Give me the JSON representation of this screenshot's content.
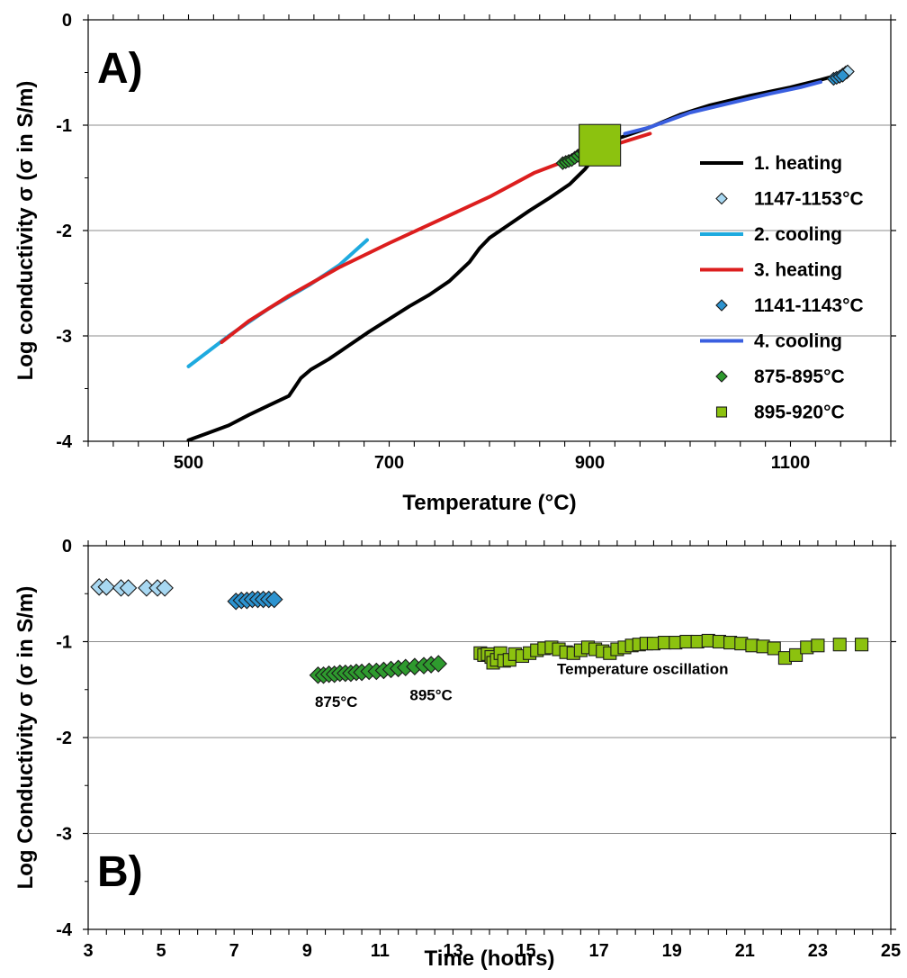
{
  "chart_data": [
    {
      "type": "line",
      "panel_label": "A)",
      "xlabel": "Temperature (°C)",
      "ylabel": "Log conductivity σ (σ in S/m)",
      "xlim": [
        400,
        1200
      ],
      "ylim": [
        -4,
        0
      ],
      "x_ticks": [
        500,
        700,
        900,
        1100
      ],
      "y_ticks": [
        0,
        -1,
        -2,
        -3,
        -4
      ],
      "grid": "horizontal",
      "legend_position": "right",
      "series": [
        {
          "name": "1. heating",
          "kind": "line",
          "color": "#000000",
          "points": [
            [
              500,
              -3.99
            ],
            [
              520,
              -3.92
            ],
            [
              540,
              -3.85
            ],
            [
              560,
              -3.75
            ],
            [
              580,
              -3.66
            ],
            [
              600,
              -3.57
            ],
            [
              605,
              -3.5
            ],
            [
              612,
              -3.4
            ],
            [
              622,
              -3.32
            ],
            [
              640,
              -3.22
            ],
            [
              660,
              -3.09
            ],
            [
              680,
              -2.96
            ],
            [
              700,
              -2.84
            ],
            [
              720,
              -2.72
            ],
            [
              740,
              -2.61
            ],
            [
              760,
              -2.48
            ],
            [
              780,
              -2.3
            ],
            [
              790,
              -2.17
            ],
            [
              800,
              -2.07
            ],
            [
              820,
              -1.94
            ],
            [
              840,
              -1.81
            ],
            [
              860,
              -1.69
            ],
            [
              880,
              -1.56
            ],
            [
              895,
              -1.42
            ],
            [
              905,
              -1.3
            ],
            [
              915,
              -1.18
            ],
            [
              930,
              -1.12
            ],
            [
              960,
              -1.02
            ],
            [
              990,
              -0.9
            ],
            [
              1020,
              -0.81
            ],
            [
              1060,
              -0.72
            ],
            [
              1100,
              -0.64
            ],
            [
              1130,
              -0.57
            ],
            [
              1145,
              -0.53
            ]
          ]
        },
        {
          "name": "1147-1153°C",
          "kind": "marker",
          "marker": "diamond",
          "color": "#a8d8f2",
          "points": [
            [
              1152,
              -0.52
            ],
            [
              1154,
              -0.51
            ],
            [
              1155,
              -0.5
            ],
            [
              1156,
              -0.5
            ],
            [
              1157,
              -0.49
            ]
          ]
        },
        {
          "name": "2. cooling",
          "kind": "line",
          "color": "#1eaadf",
          "points": [
            [
              500,
              -3.29
            ],
            [
              540,
              -3.0
            ],
            [
              580,
              -2.74
            ],
            [
              620,
              -2.52
            ],
            [
              650,
              -2.33
            ],
            [
              678,
              -2.09
            ]
          ]
        },
        {
          "name": "3. heating",
          "kind": "line",
          "color": "#dc1e1e",
          "points": [
            [
              533,
              -3.06
            ],
            [
              560,
              -2.86
            ],
            [
              600,
              -2.62
            ],
            [
              650,
              -2.35
            ],
            [
              700,
              -2.12
            ],
            [
              750,
              -1.9
            ],
            [
              800,
              -1.68
            ],
            [
              845,
              -1.45
            ],
            [
              870,
              -1.36
            ],
            [
              900,
              -1.27
            ],
            [
              930,
              -1.17
            ],
            [
              960,
              -1.08
            ]
          ]
        },
        {
          "name": "1141-1143°C",
          "kind": "marker",
          "marker": "diamond",
          "color": "#2d93cf",
          "points": [
            [
              1143,
              -0.56
            ],
            [
              1146,
              -0.55
            ],
            [
              1149,
              -0.54
            ],
            [
              1152,
              -0.53
            ]
          ]
        },
        {
          "name": "4. cooling",
          "kind": "line",
          "color": "#3a5fe0",
          "points": [
            [
              935,
              -1.08
            ],
            [
              960,
              -1.02
            ],
            [
              1000,
              -0.88
            ],
            [
              1040,
              -0.79
            ],
            [
              1080,
              -0.7
            ],
            [
              1110,
              -0.64
            ],
            [
              1130,
              -0.59
            ]
          ]
        },
        {
          "name": "875-895°C",
          "kind": "marker",
          "marker": "diamond",
          "color": "#2e9a2e",
          "points": [
            [
              873,
              -1.36
            ],
            [
              876,
              -1.35
            ],
            [
              879,
              -1.34
            ],
            [
              882,
              -1.33
            ],
            [
              885,
              -1.31
            ],
            [
              888,
              -1.29
            ],
            [
              891,
              -1.27
            ],
            [
              894,
              -1.25
            ]
          ]
        },
        {
          "name": "895-920°C",
          "kind": "marker",
          "marker": "square",
          "color": "#8cc20f",
          "points": [
            [
              910,
              -1.19
            ]
          ]
        }
      ]
    },
    {
      "type": "scatter",
      "panel_label": "B)",
      "xlabel": "Time (hours)",
      "ylabel": "Log Conductivity σ (σ in S/m)",
      "xlim": [
        3,
        25
      ],
      "ylim": [
        -4,
        0
      ],
      "x_ticks": [
        3,
        5,
        7,
        9,
        11,
        13,
        15,
        17,
        19,
        21,
        23,
        25
      ],
      "y_ticks": [
        0,
        -1,
        -2,
        -3,
        -4
      ],
      "grid": "horizontal",
      "annotations": [
        {
          "text": "875°C",
          "x": 9.8,
          "y": -1.68
        },
        {
          "text": "895°C",
          "x": 12.4,
          "y": -1.61
        },
        {
          "text": "Temperature oscillation",
          "x": 18.2,
          "y": -1.34
        }
      ],
      "series": [
        {
          "marker": "diamond",
          "color": "#a8d8f2",
          "points": [
            [
              3.3,
              -0.43
            ],
            [
              3.5,
              -0.43
            ],
            [
              3.9,
              -0.44
            ],
            [
              4.1,
              -0.44
            ],
            [
              4.6,
              -0.44
            ],
            [
              4.9,
              -0.44
            ],
            [
              5.1,
              -0.44
            ]
          ]
        },
        {
          "marker": "diamond",
          "color": "#2d93cf",
          "points": [
            [
              7.05,
              -0.58
            ],
            [
              7.2,
              -0.57
            ],
            [
              7.35,
              -0.57
            ],
            [
              7.5,
              -0.56
            ],
            [
              7.65,
              -0.56
            ],
            [
              7.8,
              -0.56
            ],
            [
              7.95,
              -0.56
            ],
            [
              8.1,
              -0.56
            ]
          ]
        },
        {
          "marker": "diamond",
          "color": "#2e9a2e",
          "points": [
            [
              9.3,
              -1.35
            ],
            [
              9.45,
              -1.35
            ],
            [
              9.6,
              -1.34
            ],
            [
              9.75,
              -1.34
            ],
            [
              9.9,
              -1.33
            ],
            [
              10.05,
              -1.33
            ],
            [
              10.2,
              -1.33
            ],
            [
              10.35,
              -1.32
            ],
            [
              10.5,
              -1.32
            ],
            [
              10.7,
              -1.31
            ],
            [
              10.9,
              -1.31
            ],
            [
              11.1,
              -1.3
            ],
            [
              11.3,
              -1.29
            ],
            [
              11.5,
              -1.28
            ],
            [
              11.7,
              -1.27
            ],
            [
              11.95,
              -1.26
            ],
            [
              12.2,
              -1.25
            ],
            [
              12.4,
              -1.24
            ],
            [
              12.6,
              -1.23
            ]
          ]
        },
        {
          "marker": "square",
          "color": "#8cc20f",
          "points": [
            [
              13.75,
              -1.12
            ],
            [
              13.85,
              -1.14
            ],
            [
              13.95,
              -1.13
            ],
            [
              14.05,
              -1.16
            ],
            [
              14.1,
              -1.22
            ],
            [
              14.2,
              -1.19
            ],
            [
              14.3,
              -1.12
            ],
            [
              14.4,
              -1.2
            ],
            [
              14.55,
              -1.19
            ],
            [
              14.7,
              -1.13
            ],
            [
              14.9,
              -1.15
            ],
            [
              15.1,
              -1.12
            ],
            [
              15.3,
              -1.09
            ],
            [
              15.5,
              -1.07
            ],
            [
              15.7,
              -1.06
            ],
            [
              15.9,
              -1.08
            ],
            [
              16.1,
              -1.11
            ],
            [
              16.3,
              -1.12
            ],
            [
              16.5,
              -1.09
            ],
            [
              16.7,
              -1.06
            ],
            [
              16.9,
              -1.08
            ],
            [
              17.1,
              -1.1
            ],
            [
              17.3,
              -1.12
            ],
            [
              17.5,
              -1.08
            ],
            [
              17.7,
              -1.06
            ],
            [
              17.9,
              -1.04
            ],
            [
              18.1,
              -1.03
            ],
            [
              18.3,
              -1.02
            ],
            [
              18.5,
              -1.02
            ],
            [
              18.8,
              -1.01
            ],
            [
              19.1,
              -1.01
            ],
            [
              19.4,
              -1.0
            ],
            [
              19.7,
              -1.0
            ],
            [
              20.0,
              -0.99
            ],
            [
              20.3,
              -1.0
            ],
            [
              20.6,
              -1.01
            ],
            [
              20.9,
              -1.02
            ],
            [
              21.2,
              -1.04
            ],
            [
              21.5,
              -1.05
            ],
            [
              21.8,
              -1.07
            ],
            [
              22.1,
              -1.17
            ],
            [
              22.4,
              -1.14
            ],
            [
              22.7,
              -1.06
            ],
            [
              23.0,
              -1.04
            ],
            [
              23.6,
              -1.03
            ],
            [
              24.2,
              -1.03
            ]
          ]
        }
      ]
    }
  ]
}
